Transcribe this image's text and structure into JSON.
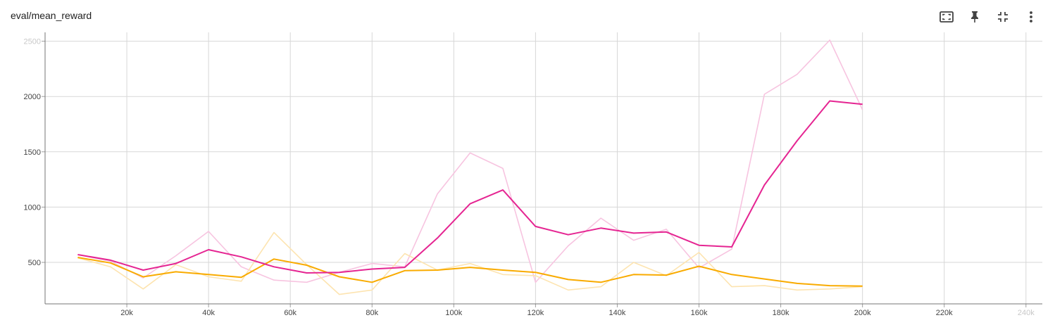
{
  "title": "eval/mean_reward",
  "toolbar": {
    "icons": [
      "fullscreen-icon",
      "pin-icon",
      "fit-domain-icon",
      "more-vert-icon"
    ]
  },
  "colors": {
    "magenta": "#e52592",
    "magenta_raw": "#f7c4e0",
    "orange": "#f9ab00",
    "orange_raw": "#fde4b0",
    "grid": "#d7d7d7"
  },
  "chart_data": {
    "type": "line",
    "x_ticks": [
      "20k",
      "40k",
      "60k",
      "80k",
      "100k",
      "120k",
      "140k",
      "160k",
      "180k",
      "200k",
      "220k",
      "240k"
    ],
    "y_ticks": [
      "2500",
      "2000",
      "1500",
      "1000",
      "500"
    ],
    "xlim": [
      0,
      244000
    ],
    "ylim": [
      125,
      2580
    ],
    "x": [
      8000,
      16000,
      24000,
      32000,
      40000,
      48000,
      56000,
      64000,
      72000,
      80000,
      88000,
      96000,
      104000,
      112000,
      120000,
      128000,
      136000,
      144000,
      152000,
      160000,
      168000,
      176000,
      184000,
      192000,
      200000
    ],
    "series": [
      {
        "color_key": "magenta_raw",
        "values": [
          570,
          510,
          360,
          560,
          780,
          460,
          340,
          320,
          410,
          490,
          460,
          1120,
          1490,
          1350,
          320,
          650,
          900,
          700,
          800,
          450,
          620,
          2020,
          2200,
          2510,
          1880
        ]
      },
      {
        "color_key": "orange_raw",
        "values": [
          540,
          460,
          260,
          480,
          370,
          330,
          770,
          480,
          210,
          250,
          580,
          430,
          490,
          390,
          380,
          250,
          280,
          500,
          380,
          590,
          280,
          290,
          250,
          260,
          280
        ]
      },
      {
        "color_key": "orange",
        "values": [
          545,
          495,
          370,
          415,
          390,
          365,
          530,
          475,
          370,
          320,
          425,
          430,
          455,
          430,
          410,
          345,
          320,
          390,
          385,
          465,
          390,
          350,
          310,
          290,
          285
        ]
      },
      {
        "color_key": "magenta",
        "values": [
          570,
          520,
          430,
          490,
          615,
          550,
          460,
          405,
          410,
          440,
          455,
          720,
          1030,
          1155,
          825,
          750,
          810,
          765,
          775,
          655,
          640,
          1200,
          1600,
          1960,
          1930
        ]
      }
    ]
  }
}
